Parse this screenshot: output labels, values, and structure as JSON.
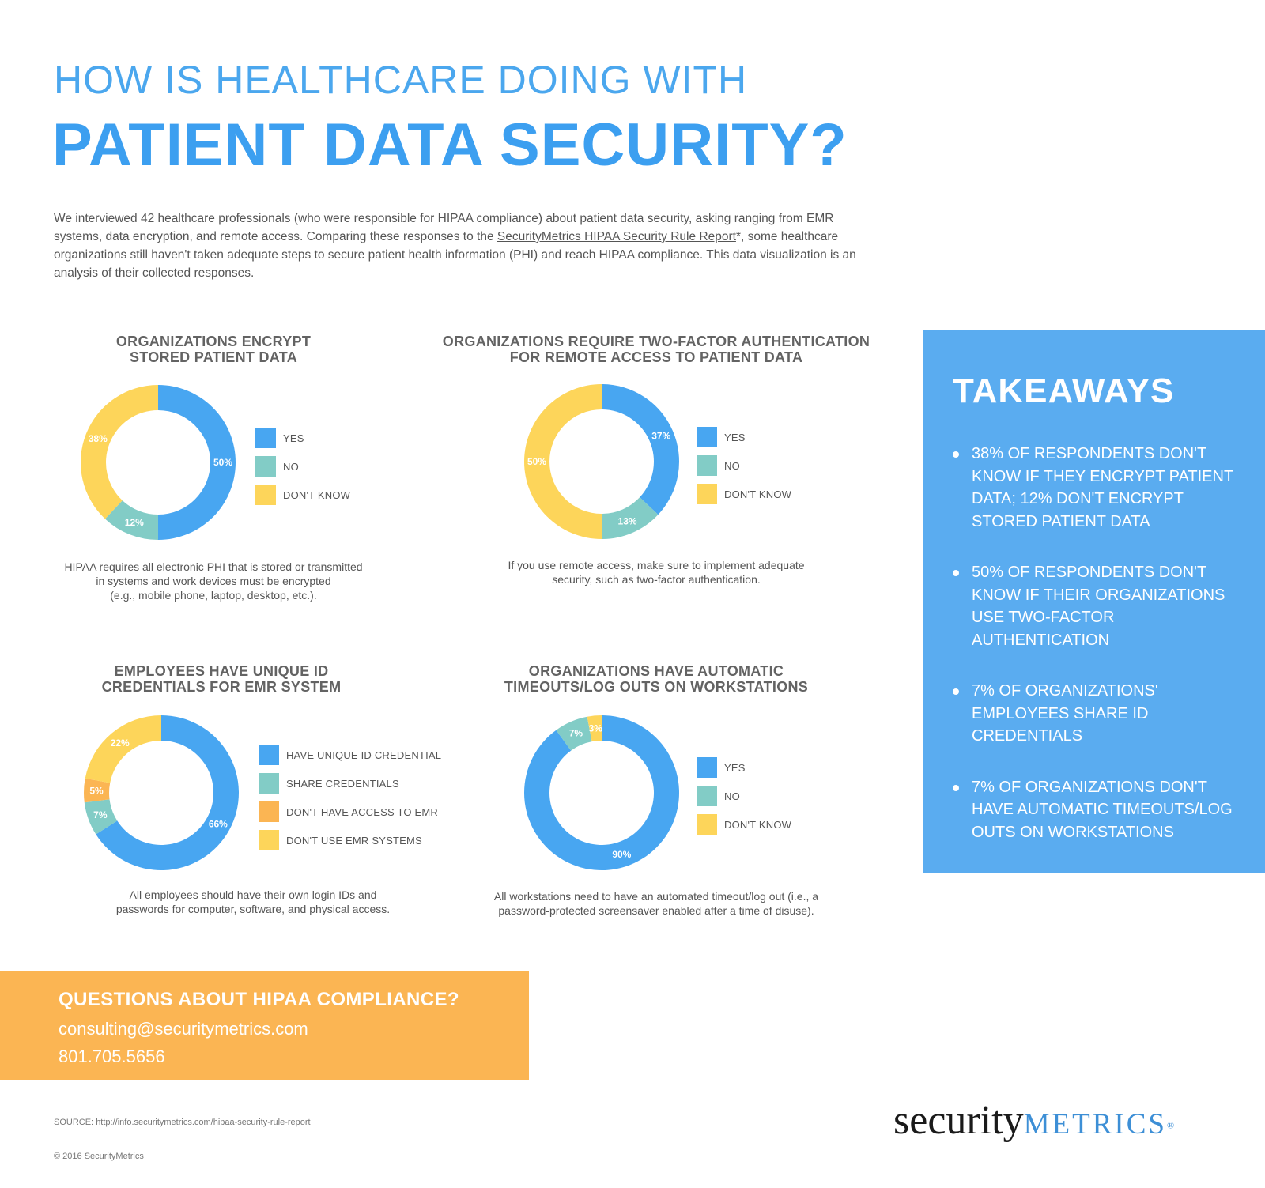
{
  "header": {
    "title_line1": "HOW IS HEALTHCARE DOING WITH",
    "title_line2": "PATIENT DATA SECURITY?"
  },
  "intro": {
    "text_before": "We interviewed 42 healthcare professionals (who were responsible for HIPAA compliance) about patient data security, asking ranging from EMR systems, data encryption, and remote access. Comparing these responses to the ",
    "link_text": "SecurityMetrics HIPAA Security Rule Report",
    "text_after": "*, some healthcare organizations still haven't taken adequate steps to secure patient health information (PHI) and reach HIPAA compliance. This data visualization is an analysis of their collected responses."
  },
  "colors": {
    "blue": "#48a6f1",
    "teal": "#82ccc6",
    "orange": "#fbb553",
    "yellow": "#fdd55a"
  },
  "chart_data": [
    {
      "type": "pie",
      "title_line1": "ORGANIZATIONS ENCRYPT",
      "title_line2": "STORED PATIENT DATA",
      "categories": [
        "YES",
        "NO",
        "DON'T KNOW"
      ],
      "values": [
        50,
        12,
        38
      ],
      "labels": [
        "50%",
        "12%",
        "38%"
      ],
      "colors": [
        "#48a6f1",
        "#82ccc6",
        "#fdd55a"
      ],
      "note_line1": "HIPAA requires all electronic PHI that is stored or transmitted",
      "note_line2": "in systems and work devices must be encrypted",
      "note_line3": "(e.g., mobile phone, laptop, desktop, etc.)."
    },
    {
      "type": "pie",
      "title_line1": "ORGANIZATIONS REQUIRE TWO-FACTOR AUTHENTICATION",
      "title_line2": "FOR REMOTE ACCESS TO PATIENT DATA",
      "categories": [
        "YES",
        "NO",
        "DON'T KNOW"
      ],
      "values": [
        37,
        13,
        50
      ],
      "labels": [
        "37%",
        "13%",
        "50%"
      ],
      "colors": [
        "#48a6f1",
        "#82ccc6",
        "#fdd55a"
      ],
      "note_line1": "If you use remote access, make sure to implement adequate",
      "note_line2": "security, such as two-factor authentication.",
      "note_line3": ""
    },
    {
      "type": "pie",
      "title_line1": "EMPLOYEES HAVE UNIQUE ID",
      "title_line2": "CREDENTIALS FOR EMR SYSTEM",
      "categories": [
        "HAVE UNIQUE ID CREDENTIAL",
        "SHARE CREDENTIALS",
        "DON'T HAVE ACCESS TO EMR",
        "DON'T USE EMR SYSTEMS"
      ],
      "values": [
        66,
        7,
        5,
        22
      ],
      "labels": [
        "66%",
        "7%",
        "5%",
        "22%"
      ],
      "colors": [
        "#48a6f1",
        "#82ccc6",
        "#fbb553",
        "#fdd55a"
      ],
      "note_line1": "All employees should have their own login IDs and",
      "note_line2": "passwords for computer, software, and physical access.",
      "note_line3": ""
    },
    {
      "type": "pie",
      "title_line1": "ORGANIZATIONS HAVE AUTOMATIC",
      "title_line2": "TIMEOUTS/LOG OUTS ON WORKSTATIONS",
      "categories": [
        "YES",
        "NO",
        "DON'T KNOW"
      ],
      "values": [
        90,
        7,
        3
      ],
      "labels": [
        "90%",
        "7%",
        "3%"
      ],
      "colors": [
        "#48a6f1",
        "#82ccc6",
        "#fdd55a"
      ],
      "note_line1": "All workstations need to have an automated timeout/log out (i.e., a",
      "note_line2": "password-protected screensaver enabled after a time of disuse).",
      "note_line3": ""
    }
  ],
  "takeaways": {
    "title": "TAKEAWAYS",
    "items": [
      "38% OF RESPONDENTS DON'T KNOW IF THEY ENCRYPT PATIENT DATA; 12% DON'T ENCRYPT STORED PATIENT DATA",
      "50% OF RESPONDENTS DON'T KNOW IF THEIR ORGANIZATIONS USE TWO-FACTOR AUTHENTICATION",
      "7% OF ORGANIZATIONS' EMPLOYEES SHARE ID CREDENTIALS",
      "7% OF ORGANIZATIONS DON'T HAVE AUTOMATIC TIMEOUTS/LOG OUTS ON WORKSTATIONS"
    ]
  },
  "cta": {
    "heading": "QUESTIONS ABOUT HIPAA COMPLIANCE?",
    "email": "consulting@securitymetrics.com",
    "phone": "801.705.5656"
  },
  "footer": {
    "source_prefix": "SOURCE: ",
    "source_link": "http://info.securitymetrics.com/hipaa-security-rule-report",
    "copyright": "© 2016 SecurityMetrics",
    "logo_part1": "security",
    "logo_part2": "METRICS",
    "logo_mark": "®"
  }
}
